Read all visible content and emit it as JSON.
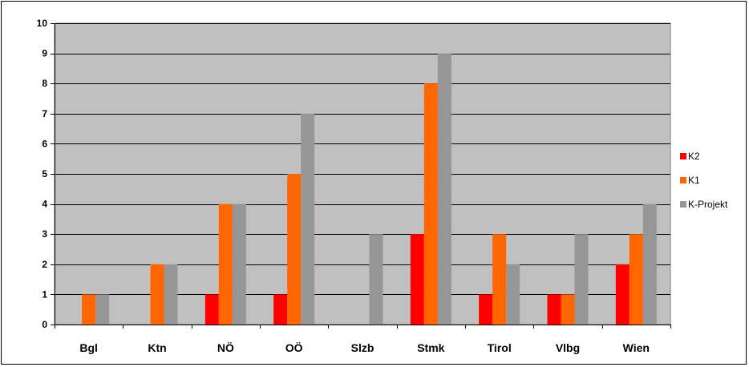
{
  "chart_data": {
    "type": "bar",
    "categories": [
      "Bgl",
      "Ktn",
      "NÖ",
      "OÖ",
      "Slzb",
      "Stmk",
      "Tirol",
      "Vlbg",
      "Wien"
    ],
    "series": [
      {
        "name": "K2",
        "color": "#ff0000",
        "values": [
          0,
          0,
          1,
          1,
          0,
          3,
          1,
          1,
          2
        ]
      },
      {
        "name": "K1",
        "color": "#ff6600",
        "values": [
          1,
          2,
          4,
          5,
          0,
          8,
          3,
          1,
          3
        ]
      },
      {
        "name": "K-Projekt",
        "color": "#969696",
        "values": [
          1,
          2,
          4,
          7,
          3,
          9,
          2,
          3,
          4
        ]
      }
    ],
    "ylim": [
      0,
      10
    ],
    "yticks": [
      0,
      1,
      2,
      3,
      4,
      5,
      6,
      7,
      8,
      9,
      10
    ],
    "grid": true,
    "plot_background": "#c0c0c0",
    "legend": "right"
  }
}
